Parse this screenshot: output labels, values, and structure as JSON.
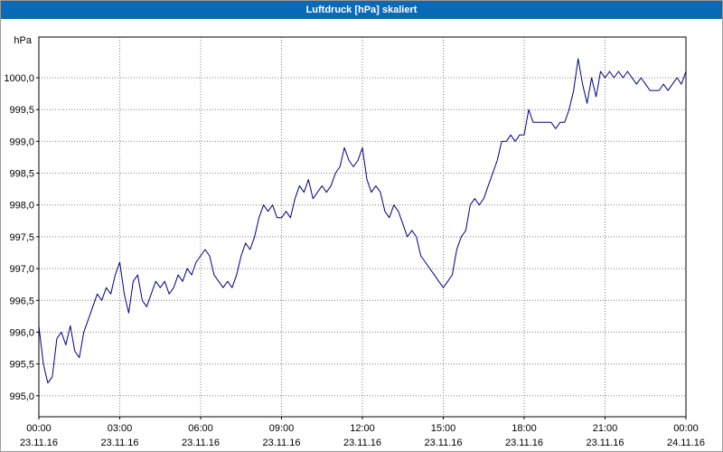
{
  "window": {
    "title": "Luftdruck [hPa] skaliert"
  },
  "colors": {
    "title_bar": "#0a6ab8",
    "line": "#000080",
    "grid": "#808080",
    "plot_background": "#ffffff"
  },
  "chart_data": {
    "type": "line",
    "title": "Luftdruck [hPa] skaliert",
    "xlabel": "",
    "ylabel": "hPa",
    "grid": "dotted",
    "legend": "none",
    "xlim_hours": [
      0,
      24
    ],
    "ylim": [
      994.67,
      1000.64
    ],
    "y_ticks": [
      {
        "value": 1000.0,
        "label": "1000,0"
      },
      {
        "value": 999.5,
        "label": "999,5"
      },
      {
        "value": 999.0,
        "label": "999,0"
      },
      {
        "value": 998.5,
        "label": "998,5"
      },
      {
        "value": 998.0,
        "label": "998,0"
      },
      {
        "value": 997.5,
        "label": "997,5"
      },
      {
        "value": 997.0,
        "label": "997,0"
      },
      {
        "value": 996.5,
        "label": "996,5"
      },
      {
        "value": 996.0,
        "label": "996,0"
      },
      {
        "value": 995.5,
        "label": "995,5"
      },
      {
        "value": 995.0,
        "label": "995,0"
      }
    ],
    "x_ticks": [
      {
        "hour": 0,
        "time": "00:00",
        "date": "23.11.16"
      },
      {
        "hour": 3,
        "time": "03:00",
        "date": "23.11.16"
      },
      {
        "hour": 6,
        "time": "06:00",
        "date": "23.11.16"
      },
      {
        "hour": 9,
        "time": "09:00",
        "date": "23.11.16"
      },
      {
        "hour": 12,
        "time": "12:00",
        "date": "23.11.16"
      },
      {
        "hour": 15,
        "time": "15:00",
        "date": "23.11.16"
      },
      {
        "hour": 18,
        "time": "18:00",
        "date": "23.11.16"
      },
      {
        "hour": 21,
        "time": "21:00",
        "date": "23.11.16"
      },
      {
        "hour": 24,
        "time": "00:00",
        "date": "24.11.16"
      }
    ],
    "series": [
      {
        "name": "Luftdruck",
        "unit": "hPa",
        "color": "#000080",
        "start_hour": 0,
        "interval_minutes": 10,
        "values": [
          996.1,
          995.5,
          995.2,
          995.3,
          995.9,
          996.0,
          995.8,
          996.1,
          995.7,
          995.6,
          996.0,
          996.2,
          996.4,
          996.6,
          996.5,
          996.7,
          996.6,
          996.9,
          997.1,
          996.6,
          996.3,
          996.8,
          996.9,
          996.5,
          996.4,
          996.6,
          996.8,
          996.7,
          996.8,
          996.6,
          996.7,
          996.9,
          996.8,
          997.0,
          996.9,
          997.1,
          997.2,
          997.3,
          997.2,
          996.9,
          996.8,
          996.7,
          996.8,
          996.7,
          996.9,
          997.2,
          997.4,
          997.3,
          997.5,
          997.8,
          998.0,
          997.9,
          998.0,
          997.8,
          997.8,
          997.9,
          997.8,
          998.1,
          998.3,
          998.2,
          998.4,
          998.1,
          998.2,
          998.3,
          998.2,
          998.3,
          998.5,
          998.6,
          998.9,
          998.7,
          998.6,
          998.7,
          998.9,
          998.4,
          998.2,
          998.3,
          998.2,
          997.9,
          997.8,
          998.0,
          997.9,
          997.7,
          997.5,
          997.6,
          997.5,
          997.2,
          997.1,
          997.0,
          996.9,
          996.8,
          996.7,
          996.8,
          996.9,
          997.3,
          997.5,
          997.6,
          998.0,
          998.1,
          998.0,
          998.1,
          998.3,
          998.5,
          998.7,
          999.0,
          999.0,
          999.1,
          999.0,
          999.1,
          999.1,
          999.5,
          999.3,
          999.3,
          999.3,
          999.3,
          999.3,
          999.2,
          999.3,
          999.3,
          999.5,
          999.8,
          1000.3,
          999.9,
          999.6,
          1000.0,
          999.7,
          1000.1,
          1000.0,
          1000.1,
          1000.0,
          1000.1,
          1000.0,
          1000.1,
          1000.0,
          999.9,
          1000.0,
          999.9,
          999.8,
          999.8,
          999.8,
          999.9,
          999.8,
          999.9,
          1000.0,
          999.9,
          1000.1
        ]
      }
    ]
  }
}
